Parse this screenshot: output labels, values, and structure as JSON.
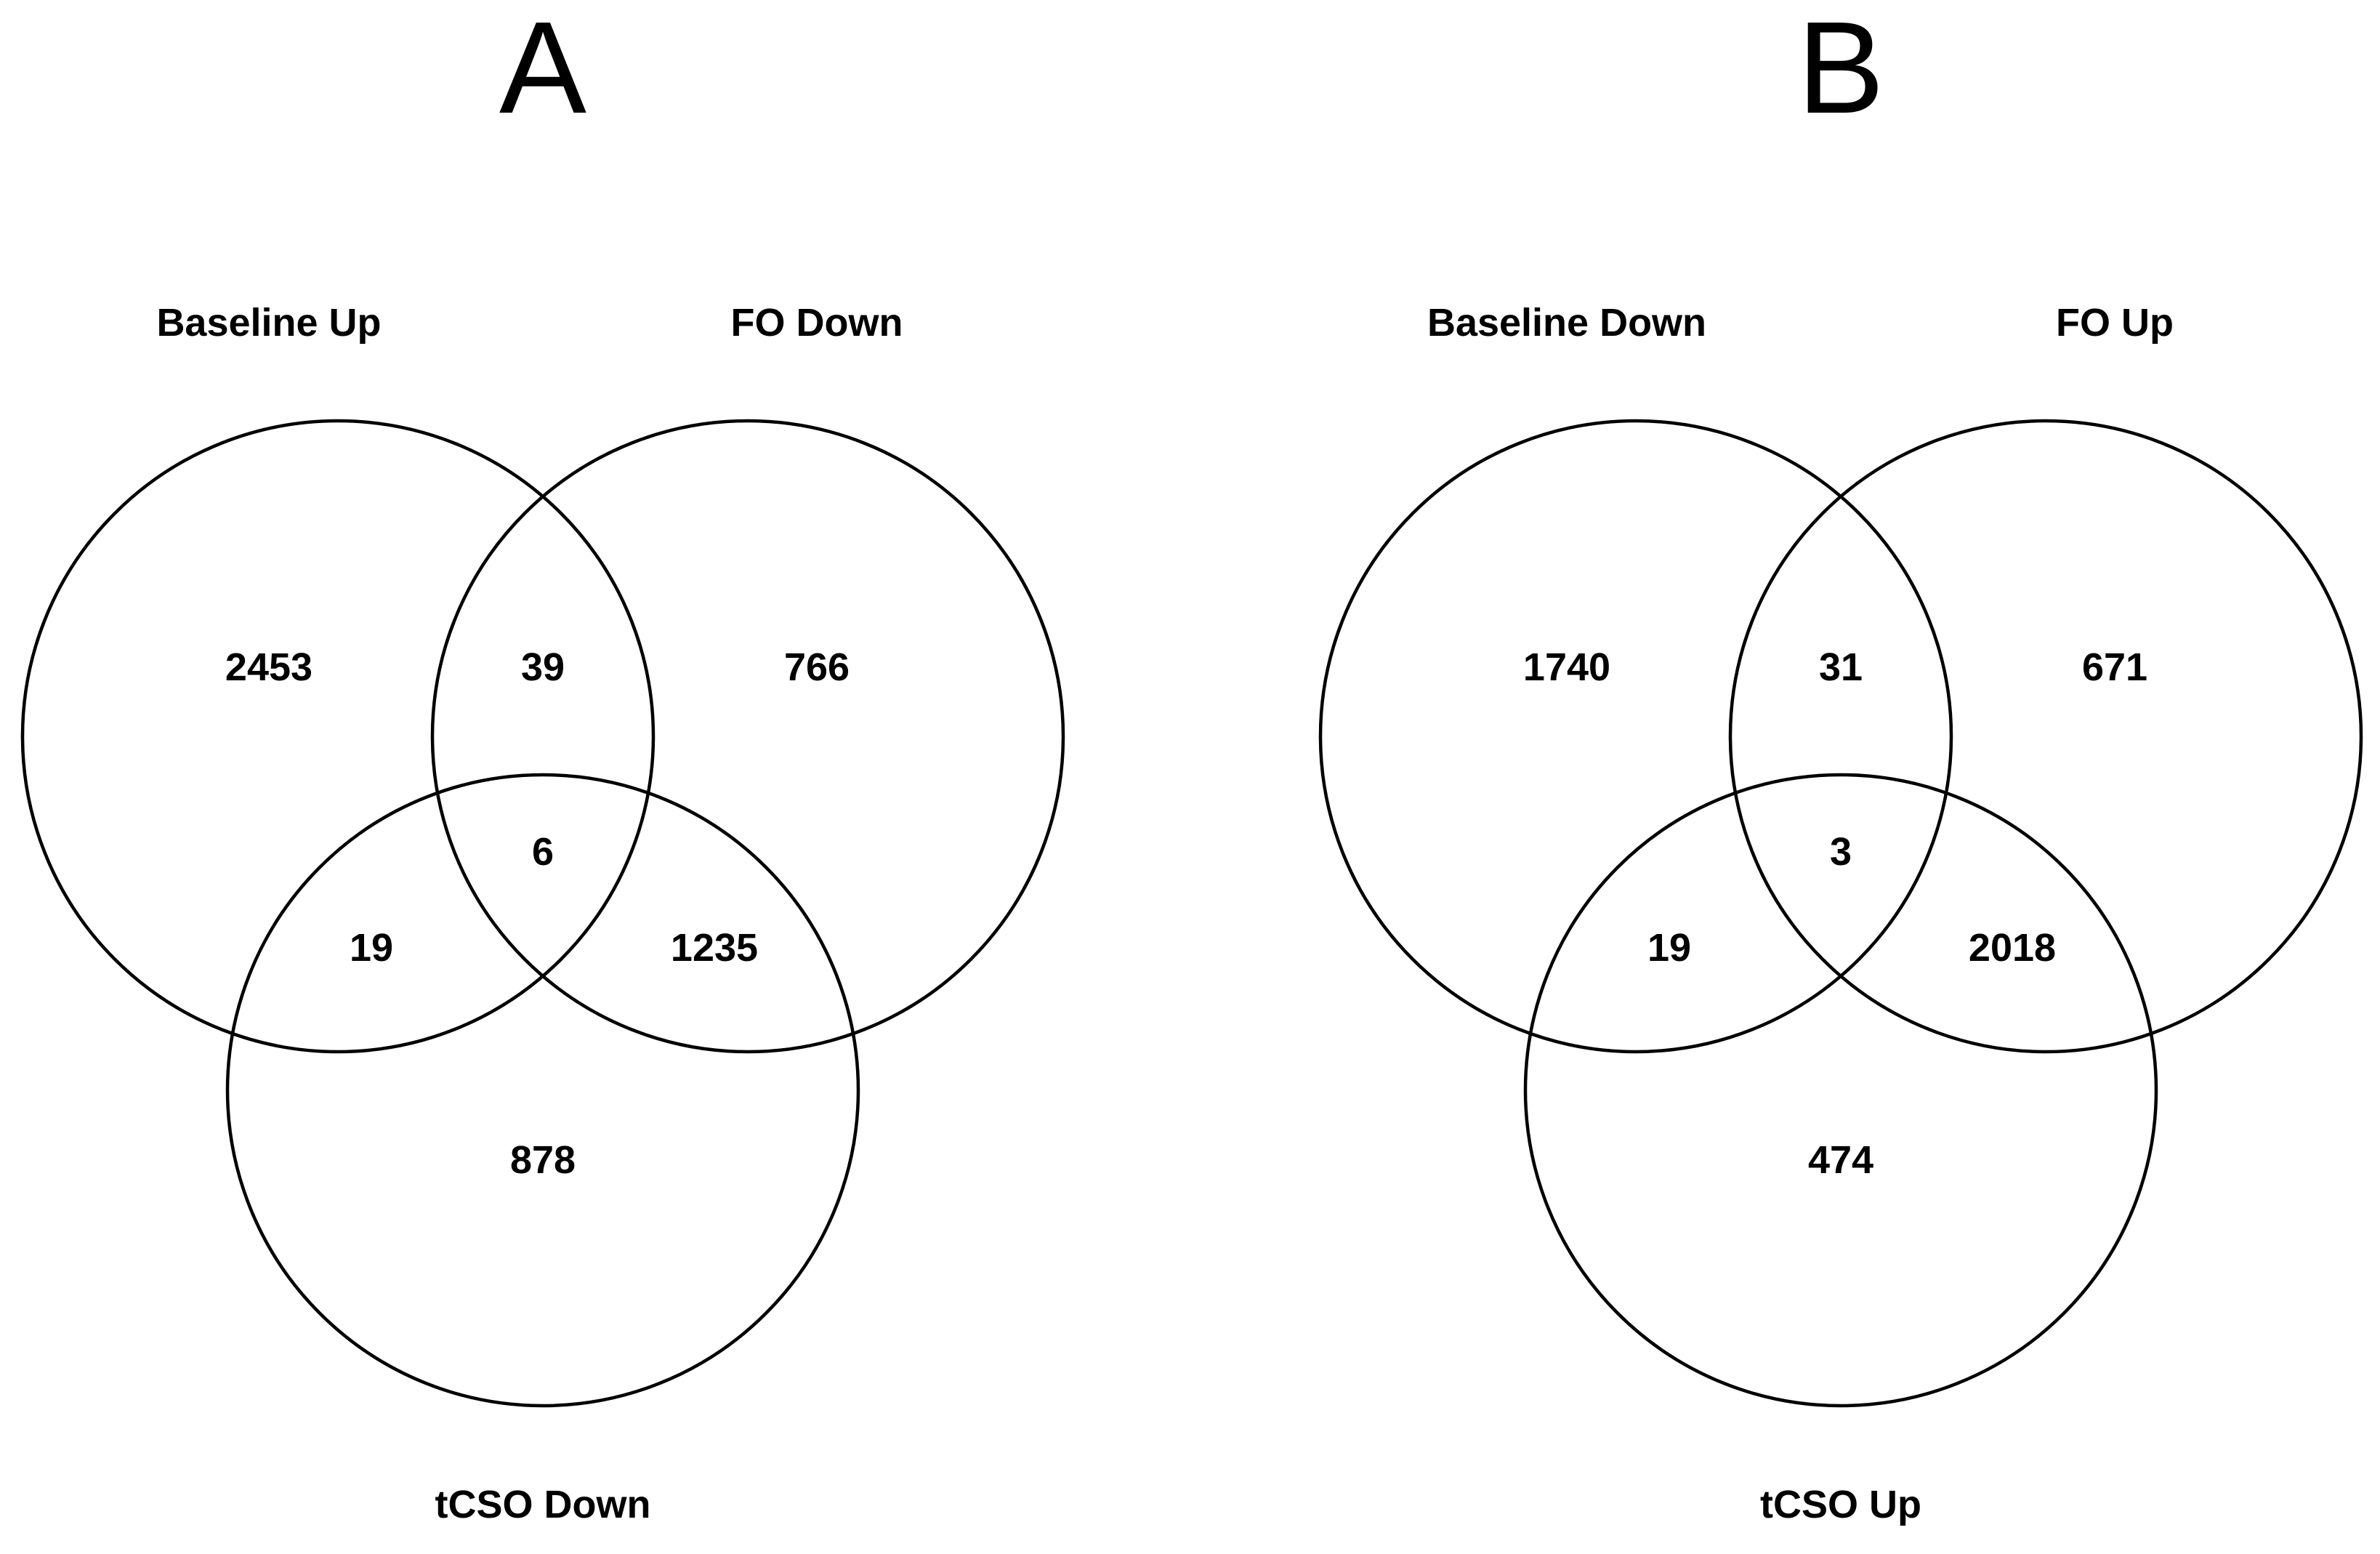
{
  "panels": [
    {
      "letter": "A",
      "sets": {
        "left": "Baseline Up",
        "right": "FO Down",
        "bottom": "tCSO Down"
      },
      "counts": {
        "left_only": "2453",
        "left_right": "39",
        "right_only": "766",
        "all_three": "6",
        "left_bottom": "19",
        "right_bottom": "1235",
        "bottom_only": "878"
      }
    },
    {
      "letter": "B",
      "sets": {
        "left": "Baseline Down",
        "right": "FO Up",
        "bottom": "tCSO Up"
      },
      "counts": {
        "left_only": "1740",
        "left_right": "31",
        "right_only": "671",
        "all_three": "3",
        "left_bottom": "19",
        "right_bottom": "2018",
        "bottom_only": "474"
      }
    }
  ]
}
